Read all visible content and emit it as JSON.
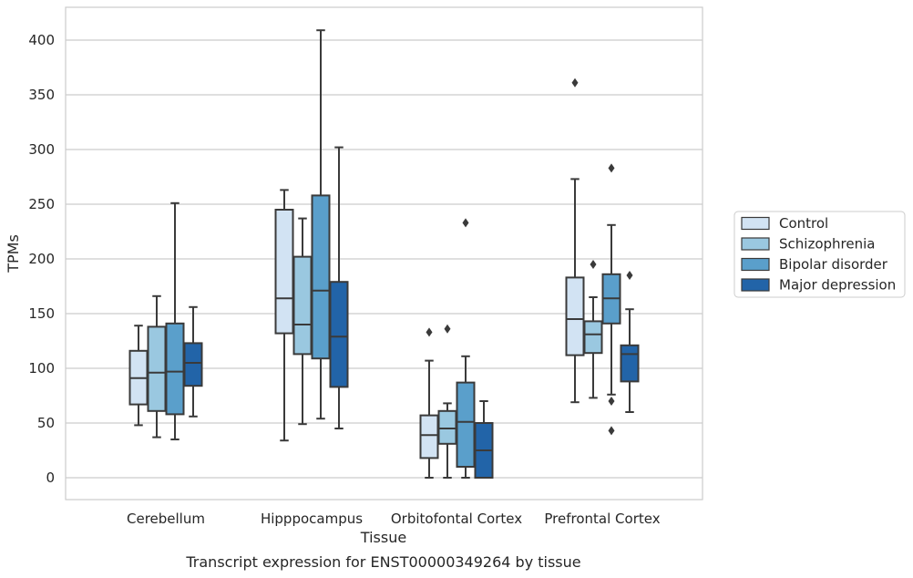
{
  "chart_data": {
    "type": "boxplot",
    "caption": "Transcript expression for ENST00000349264 by tissue",
    "xlabel": "Tissue",
    "ylabel": "TPMs",
    "ylim": [
      -20,
      430
    ],
    "yticks": [
      0,
      50,
      100,
      150,
      200,
      250,
      300,
      350,
      400
    ],
    "grid": "horizontal",
    "legend_position": "right",
    "categories": [
      "Cerebellum",
      "Hipppocampus",
      "Orbitofontal Cortex",
      "Prefrontal Cortex"
    ],
    "series": [
      {
        "name": "Control",
        "color": "#d2e3f3",
        "boxes": [
          {
            "whislo": 48,
            "q1": 67,
            "med": 91,
            "q3": 116,
            "whishi": 139,
            "fliers": []
          },
          {
            "whislo": 34,
            "q1": 132,
            "med": 164,
            "q3": 245,
            "whishi": 263,
            "fliers": []
          },
          {
            "whislo": 0,
            "q1": 18,
            "med": 39,
            "q3": 57,
            "whishi": 107,
            "fliers": [
              133
            ]
          },
          {
            "whislo": 69,
            "q1": 112,
            "med": 145,
            "q3": 183,
            "whishi": 273,
            "fliers": [
              361
            ]
          }
        ]
      },
      {
        "name": "Schizophrenia",
        "color": "#9ac8e0",
        "boxes": [
          {
            "whislo": 37,
            "q1": 61,
            "med": 96,
            "q3": 138,
            "whishi": 166,
            "fliers": []
          },
          {
            "whislo": 49,
            "q1": 113,
            "med": 140,
            "q3": 202,
            "whishi": 237,
            "fliers": []
          },
          {
            "whislo": 0,
            "q1": 31,
            "med": 45,
            "q3": 61,
            "whishi": 68,
            "fliers": [
              136
            ]
          },
          {
            "whislo": 73,
            "q1": 114,
            "med": 131,
            "q3": 143,
            "whishi": 165,
            "fliers": [
              195
            ]
          }
        ]
      },
      {
        "name": "Bipolar disorder",
        "color": "#5a9fcb",
        "boxes": [
          {
            "whislo": 35,
            "q1": 58,
            "med": 97,
            "q3": 141,
            "whishi": 251,
            "fliers": []
          },
          {
            "whislo": 54,
            "q1": 109,
            "med": 171,
            "q3": 258,
            "whishi": 409,
            "fliers": []
          },
          {
            "whislo": 0,
            "q1": 10,
            "med": 51,
            "q3": 87,
            "whishi": 111,
            "fliers": [
              233
            ]
          },
          {
            "whislo": 76,
            "q1": 141,
            "med": 164,
            "q3": 186,
            "whishi": 231,
            "fliers": [
              283,
              70,
              43
            ]
          }
        ]
      },
      {
        "name": "Major depression",
        "color": "#2264a8",
        "boxes": [
          {
            "whislo": 56,
            "q1": 84,
            "med": 105,
            "q3": 123,
            "whishi": 156,
            "fliers": []
          },
          {
            "whislo": 45,
            "q1": 83,
            "med": 129,
            "q3": 179,
            "whishi": 302,
            "fliers": []
          },
          {
            "whislo": 0,
            "q1": 0,
            "med": 25,
            "q3": 50,
            "whishi": 70,
            "fliers": []
          },
          {
            "whislo": 60,
            "q1": 88,
            "med": 113,
            "q3": 121,
            "whishi": 154,
            "fliers": [
              185
            ]
          }
        ]
      }
    ]
  }
}
